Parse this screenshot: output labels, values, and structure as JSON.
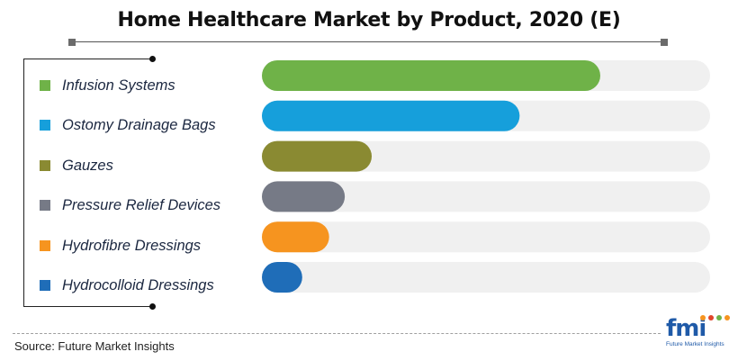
{
  "chart_data": {
    "type": "bar",
    "orientation": "horizontal",
    "title": "Home Healthcare Market by Product, 2020 (E)",
    "categories": [
      "Infusion Systems",
      "Ostomy Drainage Bags",
      "Gauzes",
      "Pressure Relief Devices",
      "Hydrofibre Dressings",
      "Hydrocolloid Dressings"
    ],
    "colors": [
      "#6fb248",
      "#169fdb",
      "#8a8a32",
      "#767a86",
      "#f6941f",
      "#1f6db8"
    ],
    "track_color": "#f0f0f0",
    "values": [
      75.5,
      57.5,
      24.5,
      18.5,
      15,
      9
    ],
    "xlim": [
      0,
      100
    ],
    "legend_position": "left",
    "grid": false
  },
  "source": "Source: Future Market Insights",
  "logo": {
    "text": "fmi",
    "subtitle": "Future Market Insights",
    "dot_colors": [
      "#f6941f",
      "#e0452a",
      "#6fb248",
      "#f6941f"
    ]
  }
}
